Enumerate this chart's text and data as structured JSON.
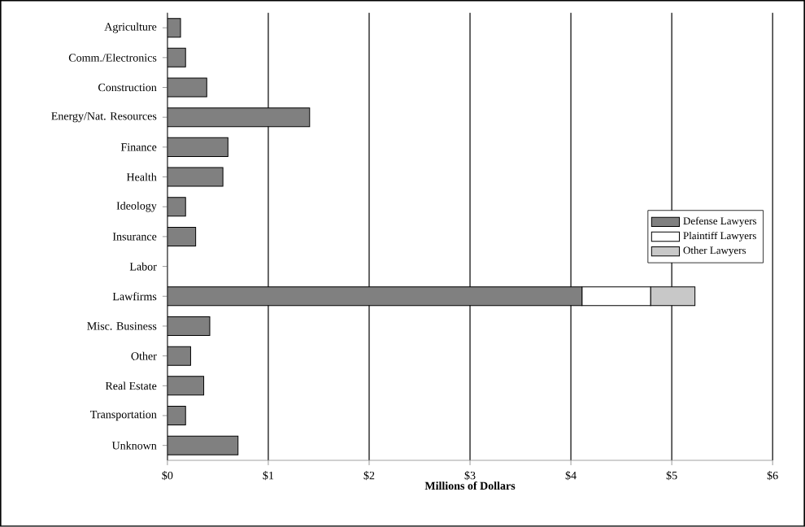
{
  "chart_data": {
    "type": "bar",
    "orientation": "horizontal",
    "stacked": true,
    "xlabel": "Millions of Dollars",
    "categories": [
      "Agriculture",
      "Comm./Electronics",
      "Construction",
      "Energy/Nat. Resources",
      "Finance",
      "Health",
      "Ideology",
      "Insurance",
      "Labor",
      "Lawfirms",
      "Misc. Business",
      "Other",
      "Real Estate",
      "Transportation",
      "Unknown"
    ],
    "series": [
      {
        "name": "Defense Lawyers",
        "color": "#808080",
        "values": [
          0.13,
          0.18,
          0.39,
          1.41,
          0.6,
          0.55,
          0.18,
          0.28,
          0,
          4.11,
          0.42,
          0.23,
          0.36,
          0.18,
          0.7
        ]
      },
      {
        "name": "Plaintiff Lawyers",
        "color": "#ffffff",
        "values": [
          0,
          0,
          0,
          0,
          0,
          0,
          0,
          0,
          0,
          0.68,
          0,
          0,
          0,
          0,
          0
        ]
      },
      {
        "name": "Other Lawyers",
        "color": "#c8c8c8",
        "values": [
          0,
          0,
          0,
          0,
          0,
          0,
          0,
          0,
          0,
          0.44,
          0,
          0,
          0,
          0,
          0
        ]
      }
    ],
    "xlim": [
      0,
      6
    ],
    "xticks": [
      {
        "value": 0,
        "label": "$0"
      },
      {
        "value": 1,
        "label": "$1"
      },
      {
        "value": 2,
        "label": "$2"
      },
      {
        "value": 3,
        "label": "$3"
      },
      {
        "value": 4,
        "label": "$4"
      },
      {
        "value": 5,
        "label": "$5"
      },
      {
        "value": 6,
        "label": "$6"
      }
    ],
    "grid": "x",
    "legend": "right"
  }
}
